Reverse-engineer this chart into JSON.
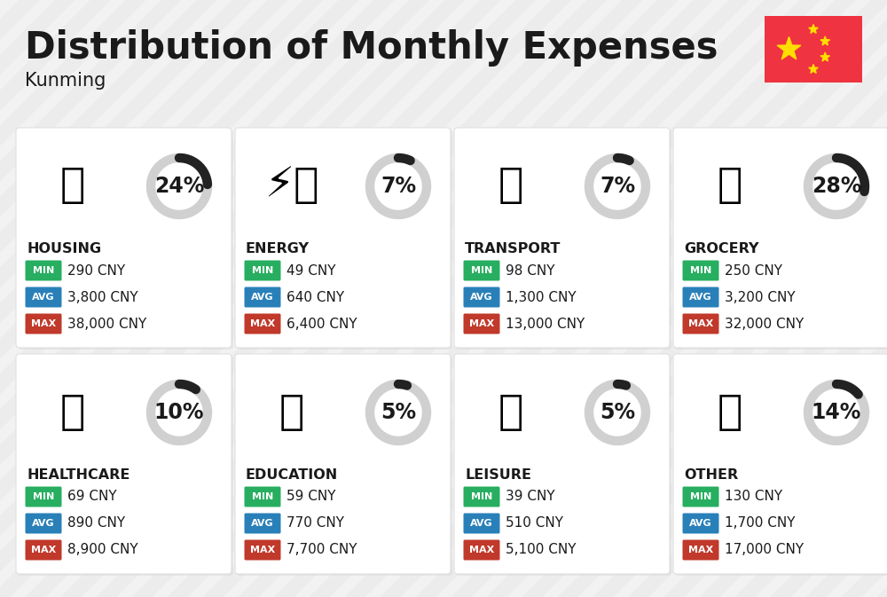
{
  "title": "Distribution of Monthly Expenses",
  "subtitle": "Kunming",
  "background_color": "#f2f2f2",
  "card_color": "#ffffff",
  "categories": [
    {
      "name": "HOUSING",
      "percent": 24,
      "min": "290 CNY",
      "avg": "3,800 CNY",
      "max": "38,000 CNY",
      "icon": "🏗️",
      "row": 0,
      "col": 0
    },
    {
      "name": "ENERGY",
      "percent": 7,
      "min": "49 CNY",
      "avg": "640 CNY",
      "max": "6,400 CNY",
      "icon": "⚡🏠",
      "row": 0,
      "col": 1
    },
    {
      "name": "TRANSPORT",
      "percent": 7,
      "min": "98 CNY",
      "avg": "1,300 CNY",
      "max": "13,000 CNY",
      "icon": "🚌",
      "row": 0,
      "col": 2
    },
    {
      "name": "GROCERY",
      "percent": 28,
      "min": "250 CNY",
      "avg": "3,200 CNY",
      "max": "32,000 CNY",
      "icon": "🛒",
      "row": 0,
      "col": 3
    },
    {
      "name": "HEALTHCARE",
      "percent": 10,
      "min": "69 CNY",
      "avg": "890 CNY",
      "max": "8,900 CNY",
      "icon": "🩺",
      "row": 1,
      "col": 0
    },
    {
      "name": "EDUCATION",
      "percent": 5,
      "min": "59 CNY",
      "avg": "770 CNY",
      "max": "7,700 CNY",
      "icon": "🎓",
      "row": 1,
      "col": 1
    },
    {
      "name": "LEISURE",
      "percent": 5,
      "min": "39 CNY",
      "avg": "510 CNY",
      "max": "5,100 CNY",
      "icon": "🛍️",
      "row": 1,
      "col": 2
    },
    {
      "name": "OTHER",
      "percent": 14,
      "min": "130 CNY",
      "avg": "1,700 CNY",
      "max": "17,000 CNY",
      "icon": "💛",
      "row": 1,
      "col": 3
    }
  ],
  "min_color": "#27ae60",
  "avg_color": "#2980b9",
  "max_color": "#c0392b",
  "text_color": "#1a1a1a",
  "arc_fg_color": "#222222",
  "arc_bg_color": "#d0d0d0",
  "title_fontsize": 30,
  "subtitle_fontsize": 15,
  "cat_fontsize": 11.5,
  "val_fontsize": 11,
  "pct_fontsize": 17,
  "icon_fontsize": 34,
  "flag_color": "#EF3340",
  "flag_star_color": "#FFDE00",
  "stripe_color": "#e8e8e8"
}
